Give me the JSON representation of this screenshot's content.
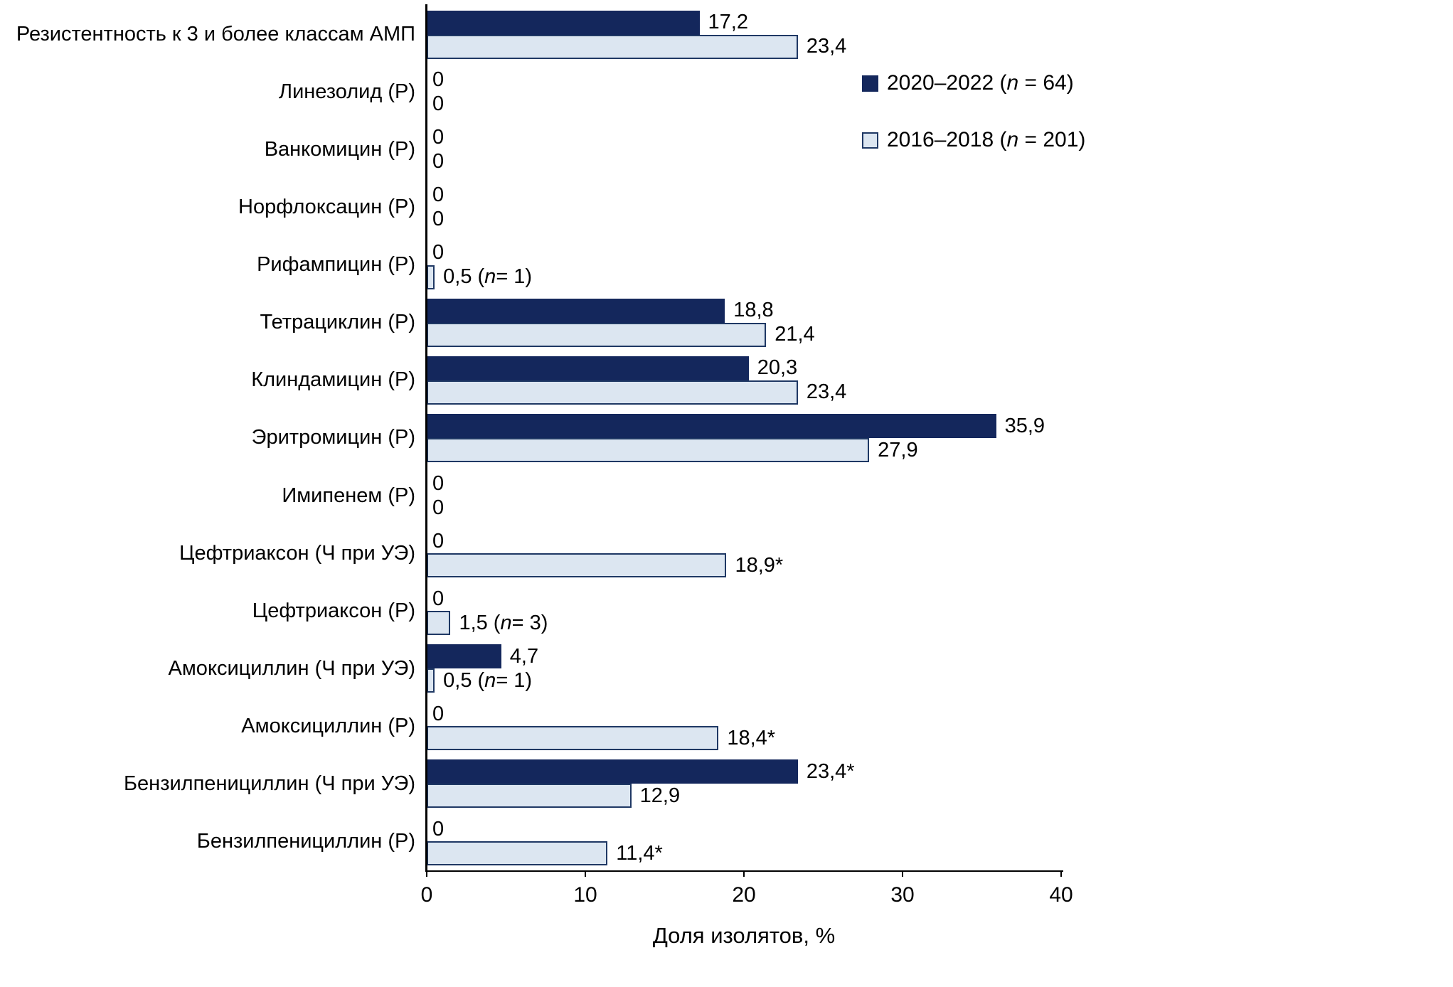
{
  "chart_data": {
    "type": "bar",
    "orientation": "horizontal",
    "title": "",
    "xlabel": "Доля изолятов, %",
    "xlim": [
      0,
      40
    ],
    "xticks": [
      "0",
      "10",
      "20",
      "30",
      "40"
    ],
    "grid": false,
    "legend_position": "top-right",
    "categories": [
      "Резистентность к 3 и более классам АМП",
      "Линезолид (Р)",
      "Ванкомицин (Р)",
      "Норфлоксацин (Р)",
      "Рифампицин (Р)",
      "Тетрациклин (Р)",
      "Клиндамицин (Р)",
      "Эритромицин (Р)",
      "Имипенем (Р)",
      "Цефтриаксон (Ч при УЭ)",
      "Цефтриаксон (Р)",
      "Амоксициллин (Ч при УЭ)",
      "Амоксициллин (Р)",
      "Бензилпенициллин (Ч при УЭ)",
      "Бензилпенициллин (Р)"
    ],
    "series": [
      {
        "name": "2020–2022 (n = 64)",
        "color": "#14275c",
        "values": [
          17.2,
          0,
          0,
          0,
          0,
          18.8,
          20.3,
          35.9,
          0,
          0,
          0,
          4.7,
          0,
          23.4,
          0
        ],
        "labels": [
          "17,2",
          "0",
          "0",
          "0",
          "0",
          "18,8",
          "20,3",
          "35,9",
          "0",
          "0",
          "0",
          "4,7",
          "0",
          "23,4*",
          "0"
        ]
      },
      {
        "name": "2016–2018 (n = 201)",
        "color": "#dce6f1",
        "values": [
          23.4,
          0,
          0,
          0,
          0.5,
          21.4,
          23.4,
          27.9,
          0,
          18.9,
          1.5,
          0.5,
          18.4,
          12.9,
          11.4
        ],
        "labels": [
          "23,4",
          "0",
          "0",
          "0",
          "0,5 (n = 1)",
          "21,4",
          "23,4",
          "27,9",
          "0",
          "18,9*",
          "1,5 (n = 3)",
          "0,5 (n = 1)",
          "18,4*",
          "12,9",
          "11,4*"
        ]
      }
    ]
  },
  "colors": {
    "series1": "#14275c",
    "series2": "#dce6f1",
    "bar_border": "#1f3864",
    "axis": "#000000",
    "text": "#000000",
    "background": "#ffffff"
  }
}
